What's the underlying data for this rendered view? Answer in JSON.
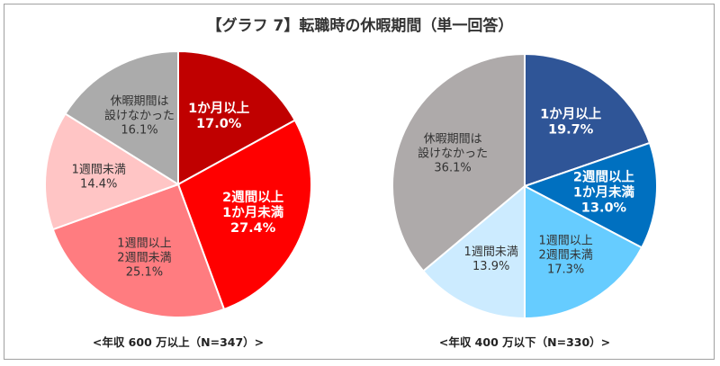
{
  "chart_data": [
    {
      "type": "pie",
      "title": "【グラフ 7】転職時の休暇期間（単一回答）",
      "caption": "<年収 600 万以上（N=347）>",
      "slices": [
        {
          "label": "1か月以上",
          "value": 17.0,
          "color": "#C00000",
          "text_color": "#FFFFFF",
          "bold": true
        },
        {
          "label": "2週間以上\n1か月未満",
          "value": 27.4,
          "color": "#FF0000",
          "text_color": "#FFFFFF",
          "bold": true
        },
        {
          "label": "1週間以上\n2週間未満",
          "value": 25.1,
          "color": "#FF7C80",
          "text_color": "#333333",
          "bold": false
        },
        {
          "label": "1週間未満",
          "value": 14.4,
          "color": "#FFC5C5",
          "text_color": "#333333",
          "bold": false
        },
        {
          "label": "休暇期間は\n設けなかった",
          "value": 16.1,
          "color": "#ABABAB",
          "text_color": "#333333",
          "bold": false
        }
      ]
    },
    {
      "type": "pie",
      "caption": "<年収 400 万以下（N=330）>",
      "slices": [
        {
          "label": "1か月以上",
          "value": 19.7,
          "color": "#2F5597",
          "text_color": "#FFFFFF",
          "bold": true
        },
        {
          "label": "2週間以上\n1か月未満",
          "value": 13.0,
          "color": "#0070C0",
          "text_color": "#FFFFFF",
          "bold": true
        },
        {
          "label": "1週間以上\n2週間未満",
          "value": 17.3,
          "color": "#66CCFF",
          "text_color": "#333333",
          "bold": false
        },
        {
          "label": "1週間未満",
          "value": 13.9,
          "color": "#CCEBFF",
          "text_color": "#333333",
          "bold": false
        },
        {
          "label": "休暇期間は\n設けなかった",
          "value": 36.1,
          "color": "#AEAAAA",
          "text_color": "#333333",
          "bold": false
        }
      ]
    }
  ]
}
